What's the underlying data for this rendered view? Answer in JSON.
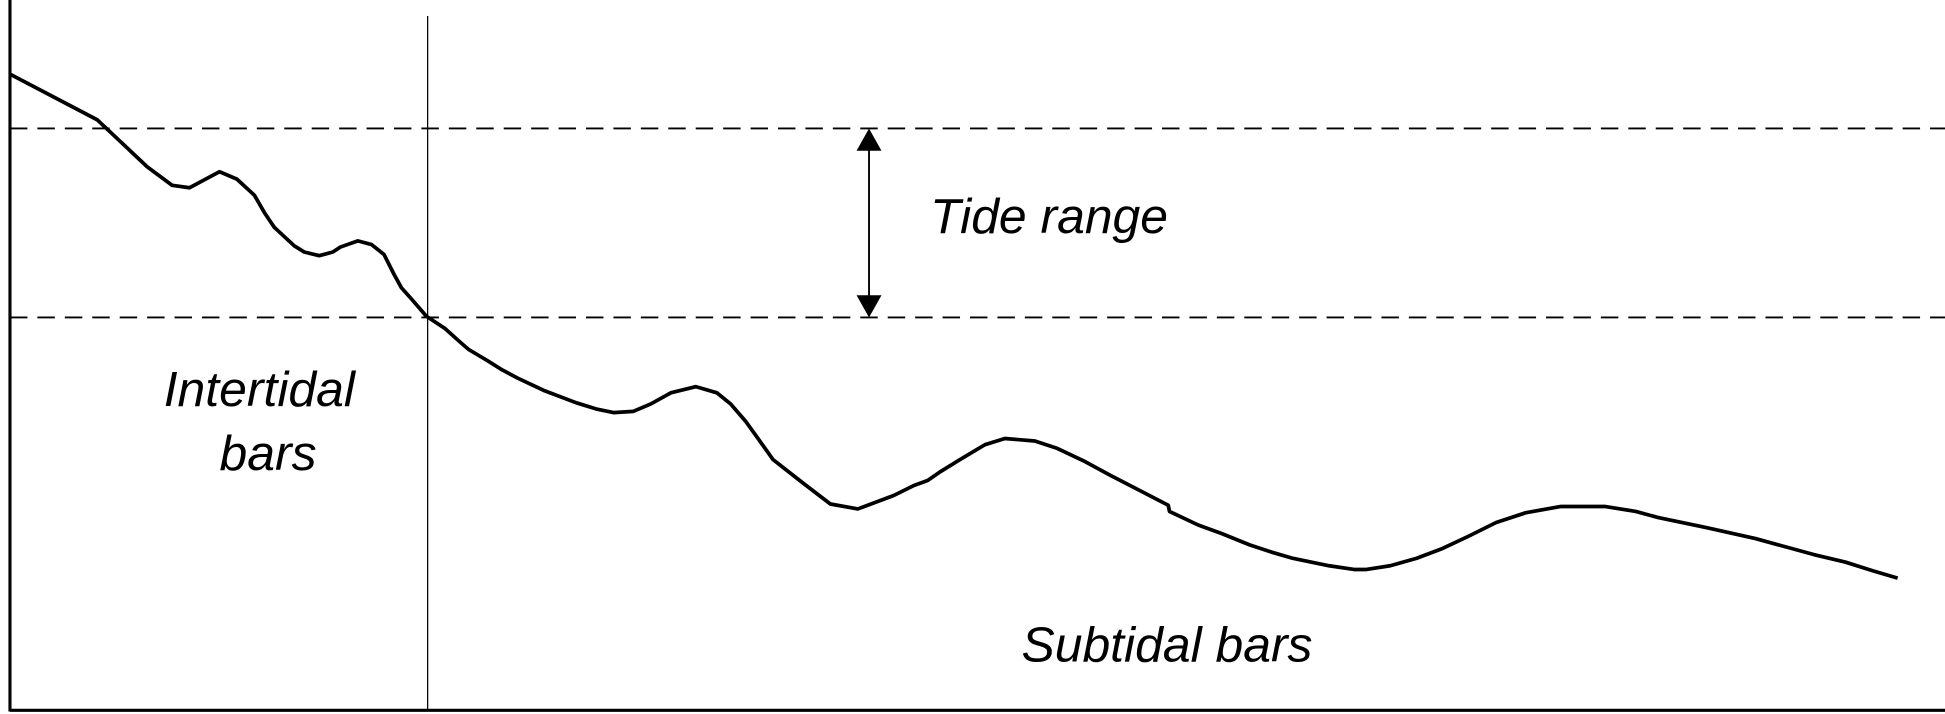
{
  "labels": {
    "tide_range": "Tide range",
    "intertidal": [
      "Intertidal",
      "bars"
    ],
    "subtidal": "Subtidal bars"
  }
}
